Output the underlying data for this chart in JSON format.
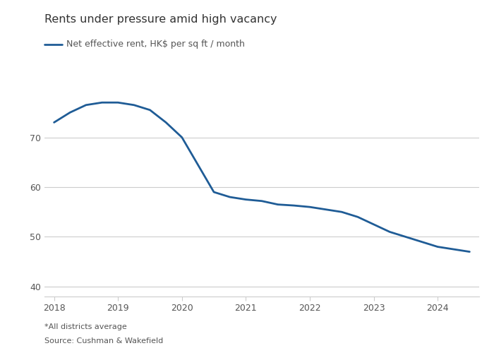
{
  "title": "Rents under pressure amid high vacancy",
  "legend_label": "Net effective rent, HK$ per sq ft / month",
  "line_color": "#1f5c96",
  "line_width": 2.0,
  "x": [
    2018.0,
    2018.25,
    2018.5,
    2018.75,
    2019.0,
    2019.25,
    2019.5,
    2019.75,
    2020.0,
    2020.25,
    2020.5,
    2020.75,
    2021.0,
    2021.25,
    2021.5,
    2021.75,
    2022.0,
    2022.25,
    2022.5,
    2022.75,
    2023.0,
    2023.25,
    2023.5,
    2023.75,
    2024.0,
    2024.25,
    2024.5
  ],
  "y": [
    73.0,
    75.0,
    76.5,
    77.0,
    77.0,
    76.5,
    75.5,
    73.0,
    70.0,
    64.5,
    59.0,
    58.0,
    57.5,
    57.2,
    56.5,
    56.3,
    56.0,
    55.5,
    55.0,
    54.0,
    52.5,
    51.0,
    50.0,
    49.0,
    48.0,
    47.5,
    47.0
  ],
  "xlim": [
    2017.85,
    2024.65
  ],
  "ylim": [
    38,
    82
  ],
  "yticks": [
    40,
    50,
    60,
    70
  ],
  "xticks": [
    2018,
    2019,
    2020,
    2021,
    2022,
    2023,
    2024
  ],
  "xticklabels": [
    "2018",
    "2019",
    "2020",
    "2021",
    "2022",
    "2023",
    "2024"
  ],
  "footnote1": "*All districts average",
  "footnote2": "Source: Cushman & Wakefield",
  "background_color": "#ffffff",
  "grid_color": "#cccccc",
  "title_color": "#333333",
  "tick_color": "#555555",
  "title_fontsize": 11.5,
  "legend_fontsize": 9,
  "tick_fontsize": 9,
  "footnote_fontsize": 8
}
